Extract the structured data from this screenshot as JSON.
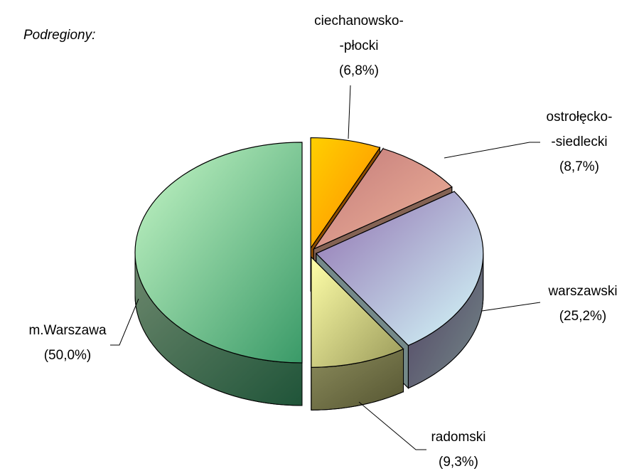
{
  "chart_data": {
    "type": "pie3d",
    "title": "Podregiony:",
    "categories": [
      "ciechanowsko-\n-płocki",
      "ostrołęcko-\n-siedlecki",
      "warszawski",
      "radomski",
      "m.Warszawa"
    ],
    "values": [
      6.8,
      8.7,
      25.2,
      9.3,
      50.0
    ],
    "value_labels": [
      "(6,8%)",
      "(8,7%)",
      "(25,2%)",
      "(9,3%)",
      "(50,0%)"
    ],
    "colors": [
      [
        "#ffd000",
        "#ff8a00"
      ],
      [
        "#c27a7a",
        "#f0b49a"
      ],
      [
        "#9070b0",
        "#d4fafa"
      ],
      [
        "#ffffa8",
        "#9a9a5a"
      ],
      [
        "#c8f8c8",
        "#3a9a68"
      ]
    ]
  }
}
